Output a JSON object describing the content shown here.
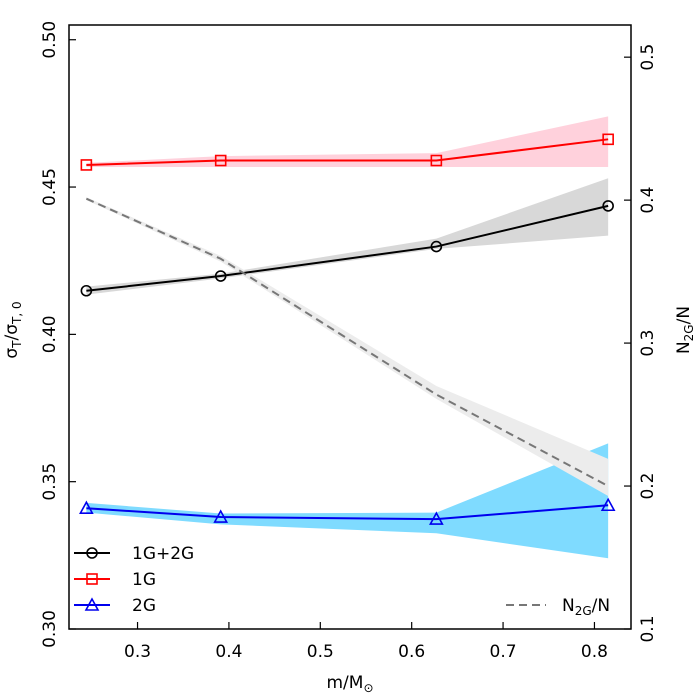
{
  "chart_data": {
    "type": "line",
    "xlabel": "m/M⊙",
    "ylabel_left": "σT/σT, 0",
    "ylabel_right": "N2G/N",
    "xlim": [
      0.225,
      0.84
    ],
    "ylim_left": [
      0.3,
      0.505
    ],
    "ylim_right": [
      0.1,
      0.5225
    ],
    "x_ticks": [
      0.3,
      0.4,
      0.5,
      0.6,
      0.7,
      0.8
    ],
    "x_tick_labels": [
      "0.3",
      "0.4",
      "0.5",
      "0.6",
      "0.7",
      "0.8"
    ],
    "y_left_ticks": [
      0.3,
      0.35,
      0.4,
      0.45,
      0.5
    ],
    "y_left_tick_labels": [
      "0.30",
      "0.35",
      "0.40",
      "0.45",
      "0.50"
    ],
    "y_right_ticks": [
      0.1,
      0.2,
      0.3,
      0.4,
      0.5
    ],
    "y_right_tick_labels": [
      "0.1",
      "0.2",
      "0.3",
      "0.4",
      "0.5"
    ],
    "x": [
      0.244,
      0.391,
      0.627,
      0.815
    ],
    "series": [
      {
        "name": "1G+2G",
        "axis": "left",
        "color": "#000000",
        "marker": "circle",
        "linestyle": "solid",
        "values": [
          0.4148,
          0.4198,
          0.4298,
          0.4436
        ],
        "band_color": "#d8d8d8",
        "band_lower": [
          0.4135,
          0.419,
          0.429,
          0.4335
        ],
        "band_upper": [
          0.4162,
          0.4206,
          0.4325,
          0.453
        ]
      },
      {
        "name": "1G",
        "axis": "left",
        "color": "#ff0000",
        "marker": "square",
        "linestyle": "solid",
        "values": [
          0.4575,
          0.459,
          0.459,
          0.4662
        ],
        "band_color": "#ffd1dc",
        "band_lower": [
          0.4568,
          0.4568,
          0.4568,
          0.4568
        ],
        "band_upper": [
          0.4582,
          0.4605,
          0.4615,
          0.474
        ]
      },
      {
        "name": "2G",
        "axis": "left",
        "color": "#0000ee",
        "marker": "triangle",
        "linestyle": "solid",
        "values": [
          0.341,
          0.338,
          0.3373,
          0.342
        ],
        "band_color": "#7fdbff",
        "band_lower": [
          0.3395,
          0.3355,
          0.3325,
          0.324
        ],
        "band_upper": [
          0.3428,
          0.3392,
          0.3395,
          0.363
        ]
      },
      {
        "name": "N2G/N",
        "axis": "right",
        "color": "#777777",
        "marker": "none",
        "linestyle": "dashed",
        "values": [
          0.401,
          0.359,
          0.264,
          0.2
        ],
        "band_color": "#ececec",
        "band_lower": [
          0.4,
          0.357,
          0.261,
          0.193
        ],
        "band_upper": [
          0.402,
          0.361,
          0.27,
          0.219
        ]
      }
    ],
    "legend_left": [
      "1G+2G",
      "1G",
      "2G"
    ],
    "legend_right": [
      "N2G/N"
    ]
  }
}
